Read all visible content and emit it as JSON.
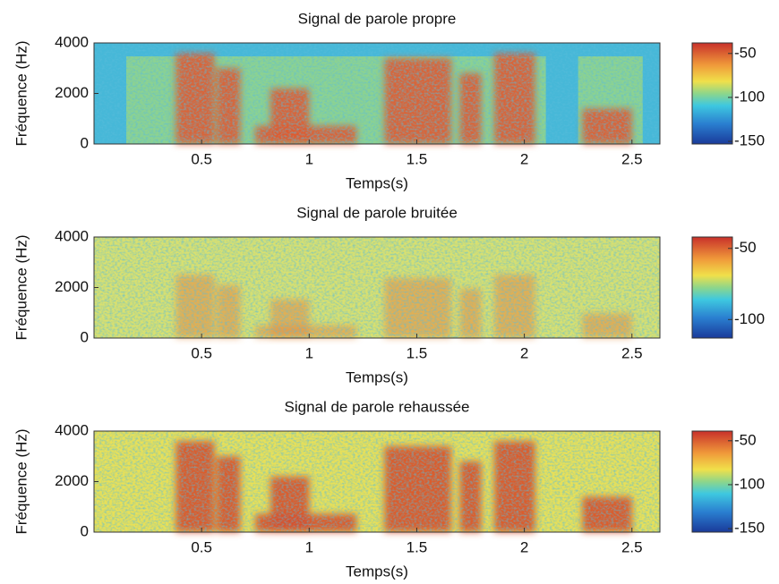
{
  "chart_data": [
    {
      "type": "spectrogram",
      "title": "Signal de parole propre",
      "x_label": "Temps(s)",
      "y_label": "Fréquence (Hz)",
      "xlim": [
        0,
        2.63
      ],
      "xticks": [
        0.5,
        1,
        1.5,
        2,
        2.5
      ],
      "ylim": [
        0,
        4000
      ],
      "yticks": [
        0,
        2000,
        4000
      ],
      "colormap": "jet",
      "colorbar": {
        "lim": [
          -153,
          -38
        ],
        "ticks": [
          -50,
          -100,
          -150
        ]
      }
    },
    {
      "type": "spectrogram",
      "title": "Signal de parole bruitée",
      "x_label": "Temps(s)",
      "y_label": "Fréquence (Hz)",
      "xlim": [
        0,
        2.63
      ],
      "xticks": [
        0.5,
        1,
        1.5,
        2,
        2.5
      ],
      "ylim": [
        0,
        4000
      ],
      "yticks": [
        0,
        2000,
        4000
      ],
      "colormap": "jet",
      "colorbar": {
        "lim": [
          -113,
          -42
        ],
        "ticks": [
          -50,
          -100
        ]
      }
    },
    {
      "type": "spectrogram",
      "title": "Signal de parole rehaussée",
      "x_label": "Temps(s)",
      "y_label": "Fréquence (Hz)",
      "xlim": [
        0,
        2.63
      ],
      "xticks": [
        0.5,
        1,
        1.5,
        2,
        2.5
      ],
      "ylim": [
        0,
        4000
      ],
      "yticks": [
        0,
        2000,
        4000
      ],
      "colormap": "jet",
      "colorbar": {
        "lim": [
          -154,
          -39
        ],
        "ticks": [
          -50,
          -100,
          -150
        ]
      }
    }
  ]
}
